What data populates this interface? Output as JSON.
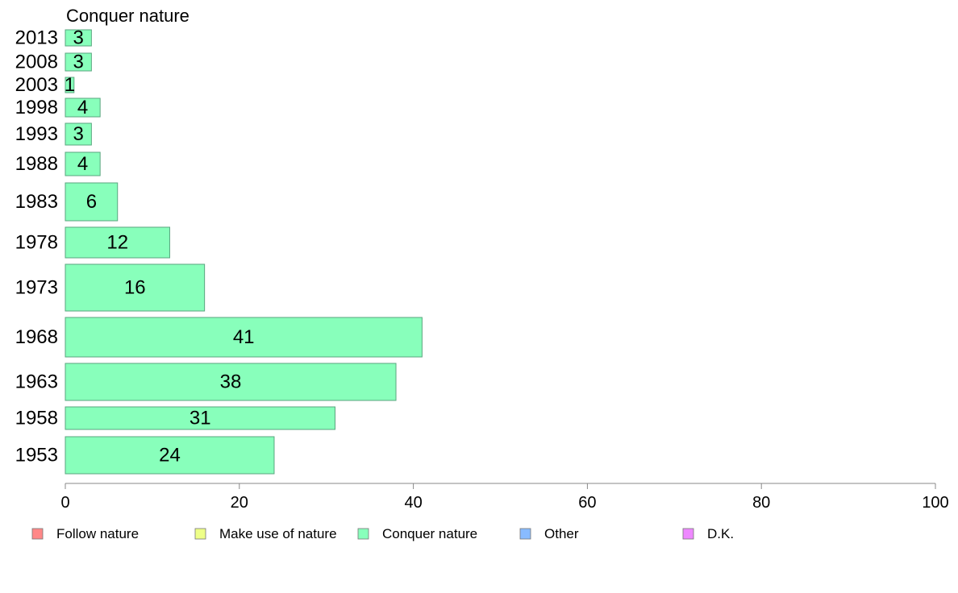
{
  "chart_data": {
    "type": "bar",
    "orientation": "horizontal",
    "title": "Conquer nature",
    "xlabel": "",
    "ylabel": "",
    "xlim": [
      0,
      100
    ],
    "x_ticks": [
      0,
      20,
      40,
      60,
      80,
      100
    ],
    "grid": false,
    "legend_position": "bottom",
    "categories": [
      "1953",
      "1958",
      "1963",
      "1968",
      "1973",
      "1978",
      "1983",
      "1988",
      "1993",
      "1998",
      "2003",
      "2008",
      "2013"
    ],
    "series": [
      {
        "name": "Conquer nature",
        "color": "#88ffbb",
        "values": [
          24,
          31,
          38,
          41,
          16,
          12,
          6,
          4,
          3,
          4,
          1,
          3,
          3
        ]
      }
    ],
    "legend": [
      {
        "label": "Follow nature",
        "color": "#ff8888"
      },
      {
        "label": "Make use of nature",
        "color": "#eeff88"
      },
      {
        "label": "Conquer nature",
        "color": "#88ffbb"
      },
      {
        "label": "Other",
        "color": "#88bbff"
      },
      {
        "label": "D.K.",
        "color": "#ee88ff"
      }
    ]
  }
}
